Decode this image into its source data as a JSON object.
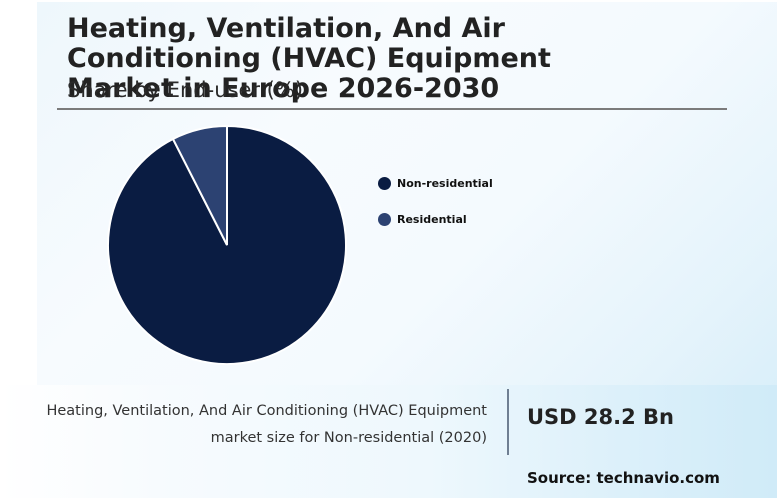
{
  "header": {
    "title": "Heating, Ventilation, And Air Conditioning (HVAC) Equipment Market in Europe 2026-2030",
    "subtitle": "Share by End-user (%)"
  },
  "legend": {
    "items": [
      {
        "label": "Non-residential",
        "color": "#0a1c42"
      },
      {
        "label": "Residential",
        "color": "#2c4272"
      }
    ]
  },
  "stat": {
    "description_line1": "Heating, Ventilation, And Air Conditioning (HVAC) Equipment",
    "description_line2": "market size for Non-residential (2020)",
    "value": "USD 28.2 Bn"
  },
  "footer": {
    "source": "Source: technavio.com"
  },
  "colors": {
    "non_residential": "#0a1c42",
    "residential": "#2c4272",
    "rule": "#7b7b7b",
    "divider": "#6f7f92"
  },
  "chart_data": {
    "type": "pie",
    "title": "Heating, Ventilation, And Air Conditioning (HVAC) Equipment Market in Europe 2026-2030",
    "subtitle": "Share by End-user (%)",
    "categories": [
      "Non-residential",
      "Residential"
    ],
    "values": [
      92.5,
      7.5
    ],
    "colors": [
      "#0a1c42",
      "#2c4272"
    ],
    "start_angle": "12 o'clock",
    "direction": "clockwise for Non-residential; Residential occupies the slice counter-clockwise from 12 o'clock",
    "legend_position": "right",
    "annotations": [
      "Non-residential market size (2020): USD 28.2 Bn"
    ]
  }
}
